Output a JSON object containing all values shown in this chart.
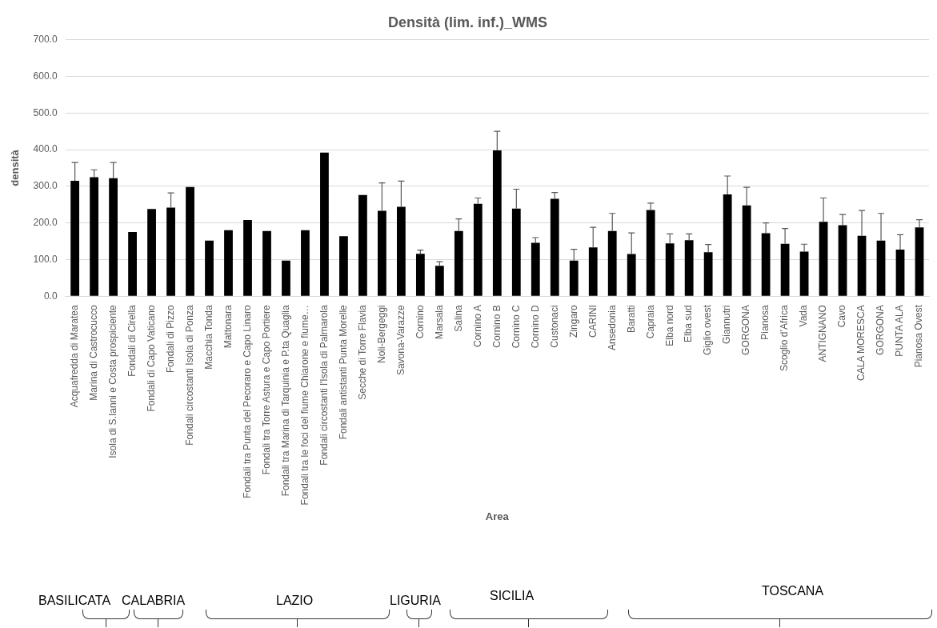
{
  "chart_data": {
    "type": "bar",
    "title": "Densità (lim. inf.)_WMS",
    "xlabel": "Area",
    "ylabel": "densità",
    "categories": [
      "Acquafredda di Maratea",
      "Marina di Castrocucco",
      "Isola di S.Ianni e Costa prospiciente",
      "Fondali di Cirella",
      "Fondali di Capo Vaticano",
      "Fondali di Pizzo",
      "Fondali circostanti Isola di Ponza",
      "Macchia Tonda",
      "Mattonara",
      "Fondali tra Punta del Pecoraro e Capo Linaro",
      "Fondali tra Torre Astura e Capo Portiere",
      "Fondali tra Marina di Tarquinia e P.ta Quaglia",
      "Fondali tra le foci del fiume Chiarone e fiume…",
      "Fondali circostanti l'Isola di Palmarola",
      "Fondali antistanti Punta Morelle",
      "Secche di Torre Flavia",
      "Noli-Bergeggi",
      "Savona-Varazze",
      "Cornino",
      "Marsala",
      "Salina",
      "Cornino A",
      "Cornino B",
      "Cornino C",
      "Cornino D",
      "Custonaci",
      "Zingaro",
      "CARINI",
      "Ansedonia",
      "Baratti",
      "Capraia",
      "Elba nord",
      "Elba sud",
      "Giglio ovest",
      "Giannutri",
      "GORGONA",
      "Pianosa",
      "Scoglio d’Africa",
      "Vada",
      "ANTIGNANO",
      "Cavo",
      "CALA MORESCA",
      "GORGONA",
      "PUNTA ALA",
      "Pianosa Ovest"
    ],
    "values": [
      315,
      325,
      322,
      175,
      238,
      242,
      298,
      152,
      180,
      208,
      178,
      97,
      180,
      392,
      164,
      276,
      233,
      244,
      116,
      83,
      178,
      252,
      398,
      239,
      146,
      266,
      97,
      133,
      178,
      115,
      235,
      144,
      153,
      120,
      278,
      248,
      172,
      143,
      122,
      203,
      194,
      165,
      152,
      127,
      188
    ],
    "errors": [
      50,
      20,
      43,
      null,
      null,
      40,
      null,
      null,
      null,
      null,
      null,
      null,
      null,
      null,
      null,
      null,
      76,
      70,
      10,
      11,
      33,
      16,
      52,
      53,
      14,
      17,
      31,
      55,
      48,
      58,
      19,
      26,
      17,
      21,
      50,
      49,
      28,
      42,
      20,
      65,
      29,
      69,
      74,
      41,
      21
    ],
    "color": "#000000",
    "ylim": [
      0,
      700
    ],
    "yticks": [
      {
        "value": 0,
        "label": "0.0"
      },
      {
        "value": 100,
        "label": "100.0"
      },
      {
        "value": 200,
        "label": "200.0"
      },
      {
        "value": 300,
        "label": "300.0"
      },
      {
        "value": 400,
        "label": "400.0"
      },
      {
        "value": 500,
        "label": "500.0"
      },
      {
        "value": 600,
        "label": "600.0"
      },
      {
        "value": 700,
        "label": "700.0"
      }
    ],
    "grid": "y",
    "legend": false,
    "annotations": [
      "BASILICATA",
      "CALABRIA",
      "LAZIO",
      "LIGURIA",
      "SICILIA",
      "TOSCANA"
    ]
  }
}
